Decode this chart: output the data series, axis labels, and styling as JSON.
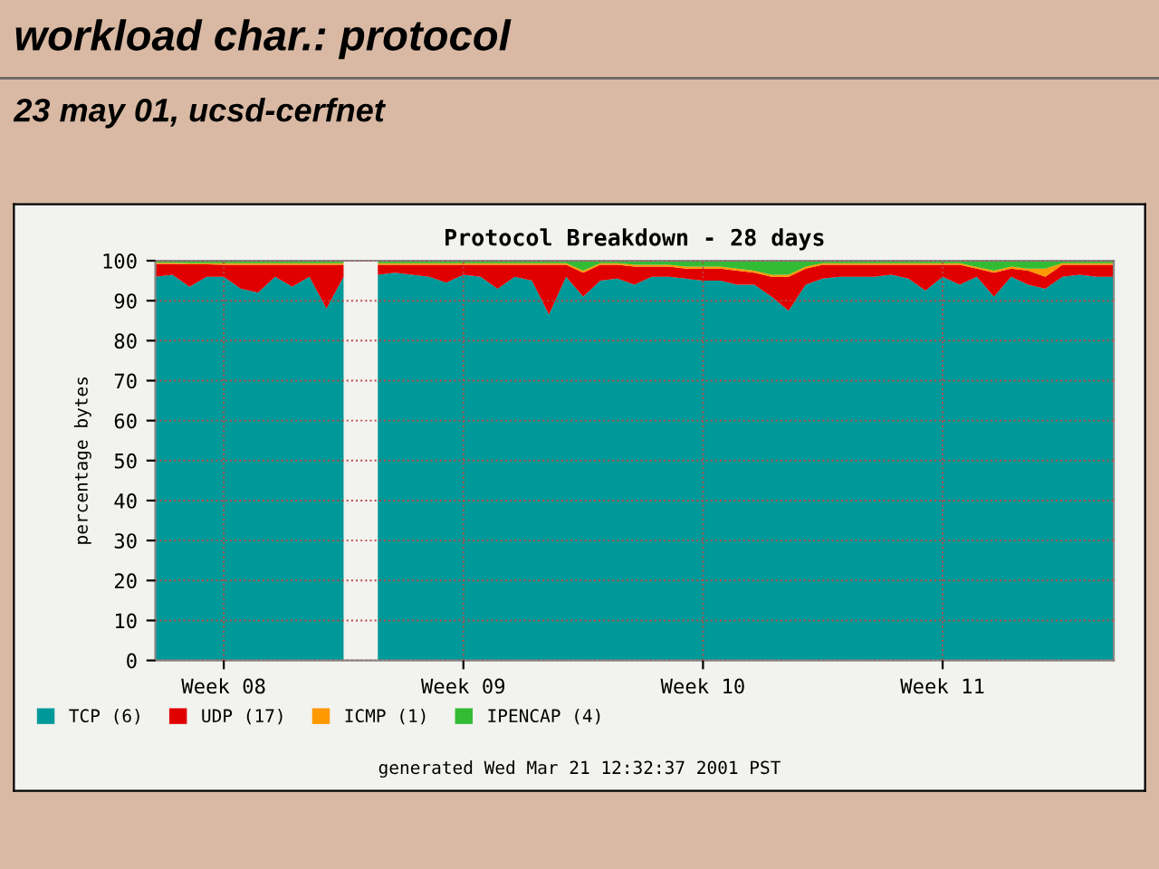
{
  "chart_data": {
    "type": "area",
    "stacked": true,
    "title": "Protocol Breakdown - 28 days",
    "ylabel": "percentage bytes",
    "annotations": [
      "workload char.: protocol",
      "23 may 01, ucsd-cerfnet",
      "generated Wed Mar 21 12:32:37 2001 PST"
    ],
    "categories": [
      null,
      null,
      null,
      null,
      "Week 08",
      null,
      null,
      null,
      null,
      null,
      null,
      null,
      null,
      null,
      null,
      null,
      null,
      null,
      "Week 09",
      null,
      null,
      null,
      null,
      null,
      null,
      null,
      null,
      null,
      null,
      null,
      null,
      null,
      "Week 10",
      null,
      null,
      null,
      null,
      null,
      null,
      null,
      null,
      null,
      null,
      null,
      null,
      null,
      "Week 11",
      null,
      null,
      null,
      null,
      null,
      null,
      null,
      null,
      null,
      null
    ],
    "series": [
      {
        "name": "TCP (6)",
        "color": "#009999",
        "values": [
          96,
          96.5,
          93.5,
          96,
          96,
          93,
          92,
          96,
          93.5,
          96,
          88,
          96,
          null,
          96.5,
          97,
          96.5,
          96,
          94.5,
          96.5,
          96,
          93,
          96,
          95,
          86.5,
          96,
          91,
          95,
          95.5,
          94,
          96,
          96,
          95.5,
          95,
          95,
          94,
          94,
          91,
          87.5,
          94,
          95.5,
          96,
          96,
          96,
          96.5,
          95.5,
          92.5,
          96,
          94,
          96,
          91,
          96,
          94,
          93,
          96,
          96.5,
          96,
          96
        ]
      },
      {
        "name": "UDP (17)",
        "color": "#e00000",
        "values": [
          3.2,
          2.7,
          5.6,
          3.1,
          3,
          6,
          7,
          3,
          5.5,
          3,
          11,
          3,
          null,
          2.5,
          2,
          2.5,
          3,
          4.5,
          2.5,
          3,
          6,
          3,
          4,
          12.5,
          3,
          6,
          4,
          3.5,
          4.5,
          2.5,
          2.5,
          2.5,
          3,
          3,
          3.5,
          3,
          5,
          8.5,
          4,
          3.5,
          3,
          3,
          3,
          2.5,
          3.5,
          6.5,
          3,
          5,
          2,
          6,
          2,
          3.5,
          3,
          3,
          2.5,
          3,
          3
        ]
      },
      {
        "name": "ICMP (1)",
        "color": "#ff9900",
        "values": [
          0.3,
          0.3,
          0.3,
          0.3,
          0.4,
          0.4,
          0.4,
          0.4,
          0.4,
          0.4,
          0.4,
          0.4,
          null,
          0.4,
          0.4,
          0.4,
          0.4,
          0.4,
          0.4,
          0.4,
          0.4,
          0.4,
          0.4,
          0.4,
          0.4,
          0.5,
          0.4,
          0.4,
          0.5,
          0.5,
          0.5,
          0.5,
          0.5,
          0.5,
          0.5,
          0.5,
          0.5,
          0.5,
          0.5,
          0.4,
          0.4,
          0.4,
          0.4,
          0.4,
          0.4,
          0.4,
          0.4,
          0.4,
          0.4,
          0.5,
          0.5,
          0.5,
          2,
          0.4,
          0.4,
          0.4,
          0.4
        ]
      },
      {
        "name": "IPENCAP (4)",
        "color": "#33bb33",
        "values": [
          0.5,
          0.5,
          0.6,
          0.6,
          0.6,
          0.6,
          0.6,
          0.6,
          0.6,
          0.6,
          0.6,
          0.6,
          null,
          0.6,
          0.6,
          0.6,
          0.6,
          0.6,
          0.6,
          0.6,
          0.6,
          0.6,
          0.6,
          0.6,
          0.6,
          2.5,
          0.6,
          0.6,
          1,
          1,
          1,
          1.5,
          1.5,
          1.5,
          2,
          2.5,
          3.5,
          3.5,
          1.5,
          0.6,
          0.6,
          0.6,
          0.6,
          0.6,
          0.6,
          0.6,
          0.6,
          0.6,
          1.6,
          2.5,
          1.5,
          2,
          2,
          0.6,
          0.6,
          0.6,
          0.6
        ]
      }
    ],
    "ylim": [
      0,
      100
    ],
    "yticks": [
      0,
      10,
      20,
      30,
      40,
      50,
      60,
      70,
      80,
      90,
      100
    ],
    "grid": true,
    "legend": "bottom"
  }
}
